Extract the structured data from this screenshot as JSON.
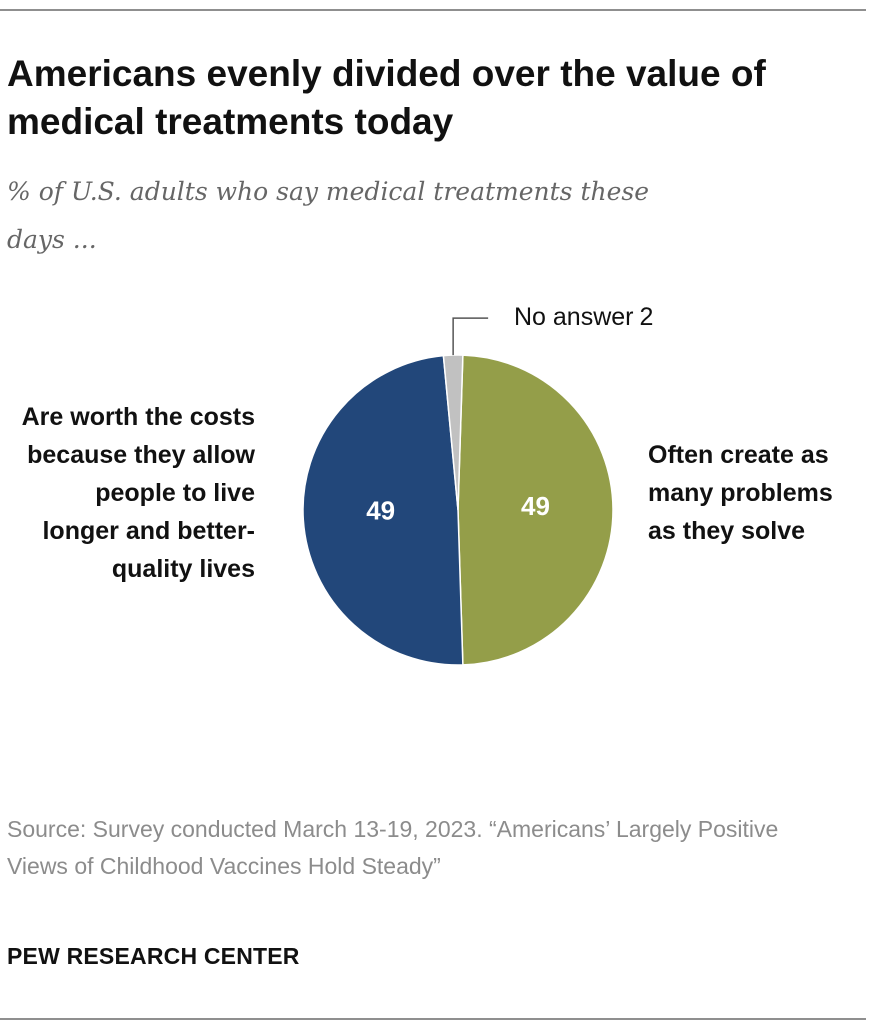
{
  "title": "Americans evenly divided over the value of medical treatments today",
  "subtitle": "% of U.S. adults who say medical treatments these days ...",
  "chart_data": {
    "type": "pie",
    "slices": [
      {
        "label": "Often create as many problems as they solve",
        "value": 49,
        "value_label": "49",
        "color": "#949e49"
      },
      {
        "label": "Are worth the costs because they allow people to live longer and better-quality lives",
        "value": 49,
        "value_label": "49",
        "color": "#22477a"
      },
      {
        "label": "No answer",
        "value": 2,
        "value_label": "2",
        "color": "#c1c1c1"
      }
    ],
    "start": "top, clockwise"
  },
  "source": "Source: Survey conducted March 13-19, 2023. “Americans’ Largely Positive Views of Childhood Vaccines Hold Steady”",
  "org": "PEW RESEARCH CENTER"
}
